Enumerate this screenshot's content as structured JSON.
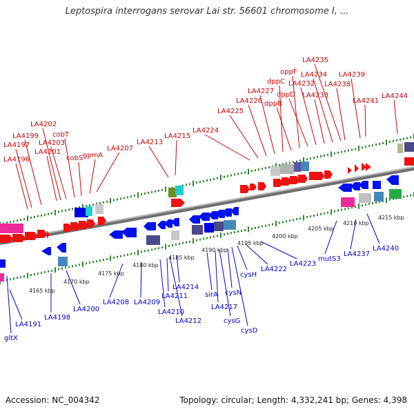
{
  "title": "Leptospira interrogans serovar Lai str. 56601 chromosome I, ...",
  "accession": "Accession: NC_004342",
  "summary": "Topology: circular; Length: 4,332,241 bp; Genes: 4,398",
  "colors": {
    "forward_gene": "#ee0000",
    "reverse_gene": "#0000ee",
    "tick": "#2a8a2a",
    "backbone": "#888888",
    "forward_label": "#cc0000",
    "reverse_label": "#0000cc"
  },
  "kbp_labels": [
    "4165 kbp",
    "4170 kbp",
    "4175 kbp",
    "4180 kbp",
    "4185 kbp",
    "4190 kbp",
    "4195 kbp",
    "4200 kbp",
    "4205 kbp",
    "4210 kbp",
    "4215 kbp"
  ],
  "forward_labels": [
    "LA4196",
    "LA4197",
    "LA4199",
    "LA4201",
    "LA4202",
    "LA4203",
    "cobT",
    "cobS",
    "gpmA",
    "LA4207",
    "LA4213",
    "LA4215",
    "LA4224",
    "LA4225",
    "LA4226",
    "LA4227",
    "dppC",
    "dppB",
    "oppF",
    "dppD",
    "LA4232",
    "LA4233",
    "LA4234",
    "LA4235",
    "LA4238",
    "LA4239",
    "LA4241",
    "LA4244"
  ],
  "reverse_labels": [
    "gltX",
    "LA4191",
    "LA4198",
    "LA4200",
    "LA4208",
    "LA4209",
    "LA4210",
    "LA4211",
    "LA4212",
    "LA4214",
    "sirA",
    "LA4217",
    "cysG",
    "cysN",
    "cysD",
    "cysH",
    "LA4222",
    "LA4223",
    "mutS3",
    "LA4237",
    "LA4240"
  ]
}
